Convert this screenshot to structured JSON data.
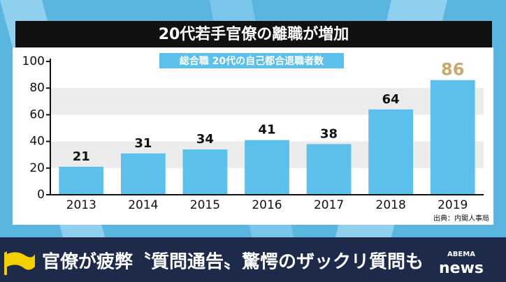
{
  "chart_data": {
    "type": "bar",
    "title": "20代若手官僚の離職が増加",
    "subtitle": "総合職 20代の自己都合退職者数",
    "categories": [
      "2013",
      "2014",
      "2015",
      "2016",
      "2017",
      "2018",
      "2019"
    ],
    "values": [
      21,
      31,
      34,
      41,
      38,
      64,
      86
    ],
    "color": "#5bc0eb",
    "label_colors": [
      "#111111",
      "#111111",
      "#111111",
      "#111111",
      "#111111",
      "#111111",
      "#c9a86c"
    ],
    "ylim": [
      0,
      100
    ],
    "yticks": [
      0,
      20,
      40,
      60,
      80,
      100
    ],
    "grid": "bands",
    "source": "出典：内閣人事局"
  },
  "ticker": {
    "headline": "官僚が疲弊〝質問通告〟驚愕のザックリ質問も"
  },
  "logo": {
    "brand": "ABEMA",
    "name": "news"
  }
}
